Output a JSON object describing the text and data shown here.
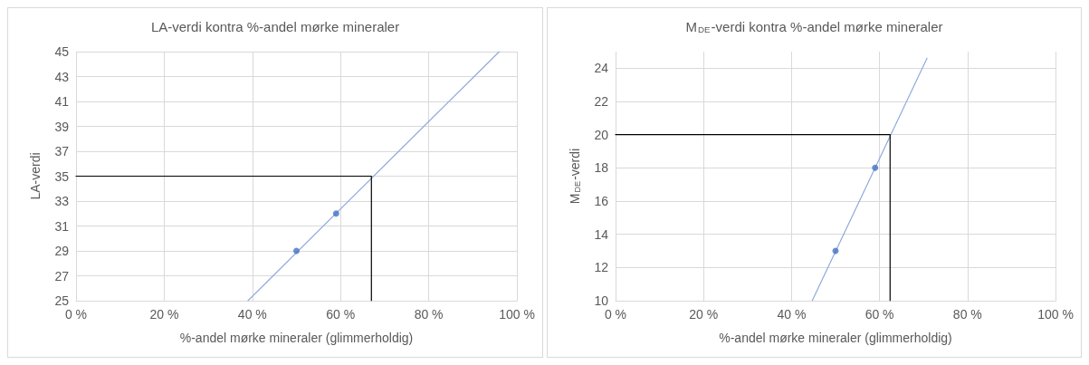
{
  "chart_data": [
    {
      "type": "scatter",
      "title": "LA-verdi kontra %-andel mørke mineraler",
      "xlabel": "%-andel mørke mineraler (glimmerholdig)",
      "ylabel": "LA-verdi",
      "xlim": [
        0,
        100
      ],
      "xticks": [
        {
          "value": 0,
          "label": "0 %"
        },
        {
          "value": 20,
          "label": "20 %"
        },
        {
          "value": 40,
          "label": "40 %"
        },
        {
          "value": 60,
          "label": "60 %"
        },
        {
          "value": 80,
          "label": "80 %"
        },
        {
          "value": 100,
          "label": "100 %"
        }
      ],
      "ylim": [
        25,
        45
      ],
      "yticks": [
        25,
        27,
        29,
        31,
        33,
        35,
        37,
        39,
        41,
        43,
        45
      ],
      "grid": true,
      "series": [
        {
          "type": "line",
          "color": "#8faadc",
          "x": [
            39,
            96
          ],
          "values": [
            25,
            45
          ]
        },
        {
          "type": "line",
          "color": "#000000",
          "x": [
            0,
            67,
            67
          ],
          "values": [
            35,
            35,
            25
          ]
        },
        {
          "color": "#4472c4",
          "marker": "circle",
          "x": [
            50,
            59
          ],
          "values": [
            29,
            32
          ]
        }
      ]
    },
    {
      "type": "scatter",
      "title": "M$_{DE}$-verdi kontra %-andel mørke mineraler",
      "xlabel": "%-andel mørke mineraler (glimmerholdig)",
      "ylabel": "M$_{DE}$-verdi",
      "xlim": [
        0,
        100
      ],
      "xticks": [
        {
          "value": 0,
          "label": "0 %"
        },
        {
          "value": 20,
          "label": "20 %"
        },
        {
          "value": 40,
          "label": "40 %"
        },
        {
          "value": 60,
          "label": "60 %"
        },
        {
          "value": 80,
          "label": "80 %"
        },
        {
          "value": 100,
          "label": "100 %"
        }
      ],
      "ylim": [
        10,
        25
      ],
      "yticks": [
        10,
        12,
        14,
        16,
        18,
        20,
        22,
        24
      ],
      "grid": true,
      "series": [
        {
          "type": "line",
          "color": "#8faadc",
          "x": [
            44.7,
            70.8
          ],
          "values": [
            10,
            24.6
          ]
        },
        {
          "type": "line",
          "color": "#000000",
          "x": [
            0,
            62.4,
            62.4
          ],
          "values": [
            20,
            20,
            10
          ]
        },
        {
          "color": "#4472c4",
          "marker": "circle",
          "x": [
            50,
            59
          ],
          "values": [
            13,
            18
          ]
        }
      ]
    }
  ]
}
